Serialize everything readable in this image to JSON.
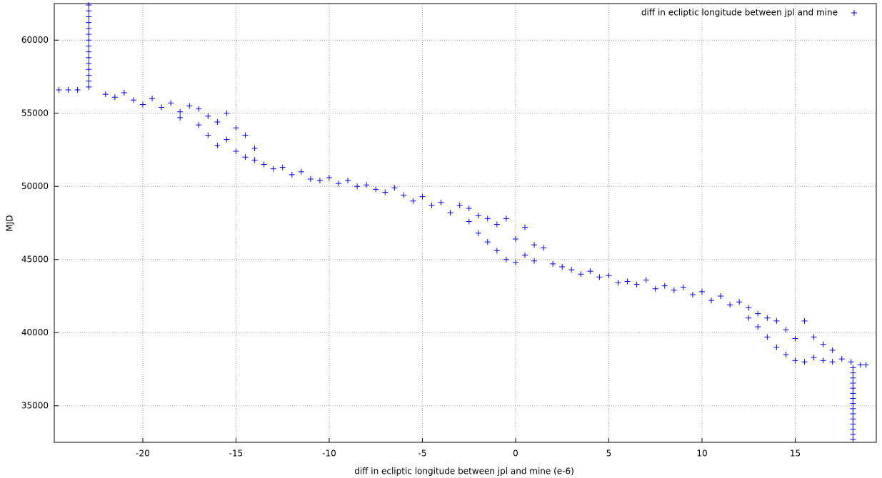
{
  "chart_data": {
    "type": "scatter",
    "xlabel": "diff in ecliptic longitude between jpl and mine (e-6)",
    "ylabel": "MJD",
    "xlim": [
      -24.75,
      19.35
    ],
    "ylim": [
      32500,
      62500
    ],
    "xticks": [
      -20,
      -15,
      -10,
      -5,
      0,
      5,
      10,
      15
    ],
    "yticks": [
      35000,
      40000,
      45000,
      50000,
      55000,
      60000
    ],
    "grid": true,
    "legend": "top-right",
    "series": [
      {
        "name": "diff in ecliptic longitude between jpl and mine",
        "color": "#0000ee",
        "x": [
          -22.9,
          -22.9,
          -22.9,
          -22.9,
          -22.9,
          -22.9,
          -22.9,
          -22.9,
          -22.9,
          -22.9,
          -22.9,
          -22.9,
          -22.9,
          -22.9,
          -22.9,
          -24.5,
          -24,
          -23.5,
          -22,
          -21.5,
          -21,
          -20.5,
          -20,
          -19.5,
          -19,
          -18.5,
          -18,
          -18,
          -17.5,
          -17,
          -17,
          -16.5,
          -16.5,
          -16,
          -16,
          -15.5,
          -15.5,
          -15,
          -15,
          -14.5,
          -14.5,
          -14,
          -14,
          -13.5,
          -13,
          -12.5,
          -12,
          -11.5,
          -11,
          -10.5,
          -10,
          -9.5,
          -9,
          -8.5,
          -8,
          -7.5,
          -7,
          -6.5,
          -6,
          -5.5,
          -5,
          -4.5,
          -4,
          -3.5,
          -3,
          -2.5,
          -2.5,
          -2,
          -2,
          -1.5,
          -1.5,
          -1,
          -1,
          -0.5,
          -0.5,
          0,
          0,
          0.5,
          0.5,
          1,
          1,
          1.5,
          2,
          2.5,
          3,
          3.5,
          4,
          4.5,
          5,
          5.5,
          6,
          6.5,
          7,
          7.5,
          8,
          8.5,
          9,
          9.5,
          10,
          10.5,
          11,
          11.5,
          12,
          12.5,
          12.5,
          13,
          13,
          13.5,
          13.5,
          14,
          14,
          14.5,
          14.5,
          15,
          15,
          15.5,
          15.5,
          16,
          16,
          16.5,
          16.5,
          17,
          17,
          17.5,
          18,
          18.5,
          18.8,
          18.1,
          18.1,
          18.1,
          18.1,
          18.1,
          18.1,
          18.1,
          18.1,
          18.1,
          18.1,
          18.1,
          18.1,
          18.1,
          18.1,
          18.1
        ],
        "values": [
          56800,
          57200,
          57600,
          58000,
          58400,
          58800,
          59200,
          59600,
          60000,
          60400,
          60800,
          61200,
          61600,
          62000,
          62400,
          56600,
          56600,
          56600,
          56300,
          56100,
          56400,
          55900,
          55600,
          56000,
          55400,
          55700,
          55100,
          54700,
          55500,
          54200,
          55300,
          53500,
          54800,
          52800,
          54400,
          53200,
          55000,
          52400,
          54000,
          52000,
          53500,
          51800,
          52600,
          51500,
          51200,
          51300,
          50800,
          51000,
          50500,
          50400,
          50600,
          50200,
          50400,
          50000,
          50100,
          49800,
          49600,
          49900,
          49400,
          49000,
          49300,
          48700,
          48900,
          48200,
          48700,
          47600,
          48500,
          46800,
          48000,
          46200,
          47800,
          45600,
          47400,
          45000,
          47800,
          44800,
          46400,
          45300,
          47200,
          44900,
          46000,
          45800,
          44700,
          44500,
          44300,
          44000,
          44200,
          43800,
          43900,
          43400,
          43500,
          43300,
          43600,
          43000,
          43200,
          42900,
          43100,
          42600,
          42800,
          42200,
          42500,
          41900,
          42100,
          41000,
          41700,
          40400,
          41300,
          39700,
          41000,
          39000,
          40800,
          38500,
          40200,
          38100,
          39600,
          38000,
          40800,
          38300,
          39700,
          38100,
          39200,
          38000,
          38800,
          38200,
          38000,
          37800,
          37800,
          32700,
          33050,
          33400,
          33750,
          34100,
          34450,
          34800,
          35150,
          35500,
          35850,
          36200,
          36550,
          36900,
          37250,
          37600
        ]
      }
    ]
  }
}
